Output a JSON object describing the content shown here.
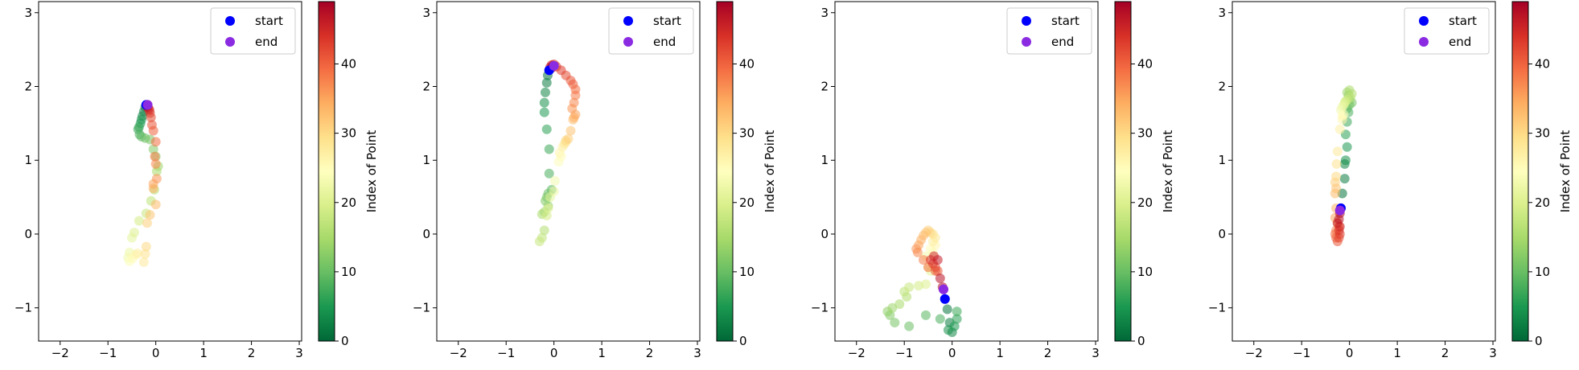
{
  "colorbar_label": "Index of Point",
  "legend": {
    "start_label": "start",
    "end_label": "end",
    "start_color": "#0000ff",
    "end_color": "#8a2be2"
  },
  "colormap": {
    "name": "RdYlGn_r",
    "stops": [
      "#006837",
      "#1a9850",
      "#66bd63",
      "#a6d96a",
      "#d9ef8b",
      "#ffffbf",
      "#fee08b",
      "#fdae61",
      "#f46d43",
      "#d73027",
      "#a50026"
    ],
    "range": [
      0,
      49
    ],
    "ticks": [
      0,
      10,
      20,
      30,
      40
    ]
  },
  "chart_data": [
    {
      "type": "scatter",
      "xlim": [
        -2.45,
        3.05
      ],
      "ylim": [
        -1.45,
        3.15
      ],
      "xticks": [
        -2,
        -1,
        0,
        1,
        2,
        3
      ],
      "yticks": [
        -1,
        0,
        1,
        2,
        3
      ],
      "legend_position": "upper right",
      "grid": false,
      "points": [
        [
          -0.2,
          1.75
        ],
        [
          -0.22,
          1.72
        ],
        [
          -0.25,
          1.66
        ],
        [
          -0.28,
          1.6
        ],
        [
          -0.3,
          1.55
        ],
        [
          -0.32,
          1.5
        ],
        [
          -0.35,
          1.45
        ],
        [
          -0.37,
          1.42
        ],
        [
          -0.34,
          1.35
        ],
        [
          -0.3,
          1.32
        ],
        [
          -0.22,
          1.3
        ],
        [
          -0.12,
          1.28
        ],
        [
          -0.05,
          1.15
        ],
        [
          0.0,
          1.05
        ],
        [
          0.05,
          0.92
        ],
        [
          0.02,
          0.85
        ],
        [
          -0.03,
          0.6
        ],
        [
          -0.1,
          0.45
        ],
        [
          -0.2,
          0.28
        ],
        [
          -0.35,
          0.18
        ],
        [
          -0.45,
          0.02
        ],
        [
          -0.5,
          -0.05
        ],
        [
          -0.55,
          -0.25
        ],
        [
          -0.58,
          -0.32
        ],
        [
          -0.55,
          -0.37
        ],
        [
          -0.48,
          -0.33
        ],
        [
          -0.42,
          -0.28
        ],
        [
          -0.38,
          -0.26
        ],
        [
          -0.25,
          -0.38
        ],
        [
          -0.22,
          -0.27
        ],
        [
          -0.2,
          -0.17
        ],
        [
          -0.18,
          0.15
        ],
        [
          -0.12,
          0.26
        ],
        [
          0.0,
          0.4
        ],
        [
          -0.05,
          0.62
        ],
        [
          -0.05,
          0.68
        ],
        [
          0.02,
          0.75
        ],
        [
          0.0,
          0.95
        ],
        [
          -0.02,
          1.05
        ],
        [
          0.0,
          1.25
        ],
        [
          -0.05,
          1.4
        ],
        [
          -0.08,
          1.48
        ],
        [
          -0.1,
          1.58
        ],
        [
          -0.12,
          1.64
        ],
        [
          -0.13,
          1.68
        ],
        [
          -0.15,
          1.7
        ],
        [
          -0.17,
          1.72
        ],
        [
          -0.18,
          1.74
        ],
        [
          -0.18,
          1.75
        ],
        [
          -0.17,
          1.75
        ]
      ],
      "start": [
        -0.2,
        1.75
      ],
      "end": [
        -0.17,
        1.75
      ]
    },
    {
      "type": "scatter",
      "xlim": [
        -2.45,
        3.05
      ],
      "ylim": [
        -1.45,
        3.15
      ],
      "xticks": [
        -2,
        -1,
        0,
        1,
        2,
        3
      ],
      "yticks": [
        -1,
        0,
        1,
        2,
        3
      ],
      "legend_position": "upper right",
      "grid": false,
      "points": [
        [
          -0.1,
          2.22
        ],
        [
          -0.13,
          2.15
        ],
        [
          -0.15,
          2.05
        ],
        [
          -0.18,
          1.92
        ],
        [
          -0.2,
          1.78
        ],
        [
          -0.2,
          1.65
        ],
        [
          -0.15,
          1.42
        ],
        [
          -0.1,
          1.15
        ],
        [
          -0.1,
          0.82
        ],
        [
          -0.05,
          0.6
        ],
        [
          -0.12,
          0.55
        ],
        [
          -0.15,
          0.5
        ],
        [
          -0.18,
          0.45
        ],
        [
          -0.12,
          0.38
        ],
        [
          -0.2,
          0.3
        ],
        [
          -0.25,
          0.27
        ],
        [
          -0.2,
          0.05
        ],
        [
          -0.25,
          -0.05
        ],
        [
          -0.3,
          -0.1
        ],
        [
          -0.15,
          0.25
        ],
        [
          -0.12,
          0.35
        ],
        [
          -0.08,
          0.5
        ],
        [
          0.0,
          0.58
        ],
        [
          0.02,
          0.72
        ],
        [
          0.1,
          0.98
        ],
        [
          0.15,
          1.05
        ],
        [
          0.12,
          1.1
        ],
        [
          0.18,
          1.18
        ],
        [
          0.22,
          1.22
        ],
        [
          0.25,
          1.25
        ],
        [
          0.25,
          1.27
        ],
        [
          0.3,
          1.29
        ],
        [
          0.35,
          1.4
        ],
        [
          0.4,
          1.55
        ],
        [
          0.42,
          1.58
        ],
        [
          0.45,
          1.62
        ],
        [
          0.38,
          1.7
        ],
        [
          0.42,
          1.78
        ],
        [
          0.45,
          1.88
        ],
        [
          0.45,
          1.96
        ],
        [
          0.4,
          2.03
        ],
        [
          0.35,
          2.08
        ],
        [
          0.25,
          2.15
        ],
        [
          0.15,
          2.22
        ],
        [
          0.05,
          2.27
        ],
        [
          0.0,
          2.3
        ],
        [
          -0.05,
          2.29
        ],
        [
          -0.08,
          2.26
        ],
        [
          -0.05,
          2.25
        ],
        [
          -0.02,
          2.28
        ]
      ],
      "start": [
        -0.1,
        2.22
      ],
      "end": [
        0.0,
        2.28
      ]
    },
    {
      "type": "scatter",
      "xlim": [
        -2.45,
        3.05
      ],
      "ylim": [
        -1.45,
        3.15
      ],
      "xticks": [
        -2,
        -1,
        0,
        1,
        2,
        3
      ],
      "yticks": [
        -1,
        0,
        1,
        2,
        3
      ],
      "legend_position": "upper right",
      "grid": false,
      "points": [
        [
          -0.15,
          -0.88
        ],
        [
          -0.1,
          -1.02
        ],
        [
          -0.05,
          -1.2
        ],
        [
          0.0,
          -1.33
        ],
        [
          -0.08,
          -1.3
        ],
        [
          0.05,
          -1.25
        ],
        [
          0.1,
          -1.15
        ],
        [
          0.1,
          -1.05
        ],
        [
          -0.25,
          -1.15
        ],
        [
          -0.55,
          -1.1
        ],
        [
          -0.9,
          -1.25
        ],
        [
          -1.2,
          -1.2
        ],
        [
          -1.3,
          -1.1
        ],
        [
          -1.35,
          -1.05
        ],
        [
          -1.25,
          -1.0
        ],
        [
          -1.1,
          -0.95
        ],
        [
          -0.95,
          -0.85
        ],
        [
          -1.0,
          -0.78
        ],
        [
          -0.9,
          -0.72
        ],
        [
          -0.7,
          -0.7
        ],
        [
          -0.55,
          -0.68
        ],
        [
          -0.45,
          -0.5
        ],
        [
          -0.5,
          -0.45
        ],
        [
          -0.55,
          -0.3
        ],
        [
          -0.4,
          -0.25
        ],
        [
          -0.45,
          -0.2
        ],
        [
          -0.35,
          -0.15
        ],
        [
          -0.4,
          -0.1
        ],
        [
          -0.35,
          -0.05
        ],
        [
          -0.4,
          0.0
        ],
        [
          -0.45,
          0.02
        ],
        [
          -0.5,
          0.05
        ],
        [
          -0.55,
          0.02
        ],
        [
          -0.6,
          -0.02
        ],
        [
          -0.65,
          -0.08
        ],
        [
          -0.7,
          -0.15
        ],
        [
          -0.75,
          -0.2
        ],
        [
          -0.72,
          -0.25
        ],
        [
          -0.6,
          -0.35
        ],
        [
          -0.5,
          -0.45
        ],
        [
          -0.35,
          -0.5
        ],
        [
          -0.3,
          -0.5
        ],
        [
          -0.35,
          -0.45
        ],
        [
          -0.4,
          -0.4
        ],
        [
          -0.45,
          -0.35
        ],
        [
          -0.38,
          -0.3
        ],
        [
          -0.3,
          -0.35
        ],
        [
          -0.25,
          -0.6
        ],
        [
          -0.2,
          -0.72
        ],
        [
          -0.18,
          -0.75
        ]
      ],
      "start": [
        -0.15,
        -0.88
      ],
      "end": [
        -0.18,
        -0.75
      ]
    },
    {
      "type": "scatter",
      "xlim": [
        -2.45,
        3.05
      ],
      "ylim": [
        -1.45,
        3.15
      ],
      "xticks": [
        -2,
        -1,
        0,
        1,
        2,
        3
      ],
      "yticks": [
        -1,
        0,
        1,
        2,
        3
      ],
      "legend_position": "upper right",
      "grid": false,
      "points": [
        [
          -0.18,
          0.35
        ],
        [
          -0.15,
          0.55
        ],
        [
          -0.1,
          0.75
        ],
        [
          -0.1,
          0.95
        ],
        [
          -0.08,
          1.0
        ],
        [
          -0.05,
          1.18
        ],
        [
          -0.08,
          1.35
        ],
        [
          -0.05,
          1.52
        ],
        [
          -0.02,
          1.65
        ],
        [
          -0.05,
          1.7
        ],
        [
          0.0,
          1.75
        ],
        [
          0.05,
          1.78
        ],
        [
          0.0,
          1.82
        ],
        [
          -0.02,
          1.88
        ],
        [
          -0.05,
          1.92
        ],
        [
          0.0,
          1.95
        ],
        [
          0.05,
          1.9
        ],
        [
          0.02,
          1.85
        ],
        [
          -0.05,
          1.82
        ],
        [
          -0.08,
          1.8
        ],
        [
          -0.1,
          1.78
        ],
        [
          -0.12,
          1.75
        ],
        [
          -0.15,
          1.72
        ],
        [
          -0.18,
          1.68
        ],
        [
          -0.12,
          1.62
        ],
        [
          -0.15,
          1.6
        ],
        [
          -0.15,
          1.55
        ],
        [
          -0.2,
          1.42
        ],
        [
          -0.25,
          1.12
        ],
        [
          -0.27,
          0.95
        ],
        [
          -0.28,
          0.78
        ],
        [
          -0.3,
          0.7
        ],
        [
          -0.28,
          0.62
        ],
        [
          -0.3,
          0.55
        ],
        [
          -0.28,
          0.35
        ],
        [
          -0.3,
          0.22
        ],
        [
          -0.25,
          0.15
        ],
        [
          -0.22,
          0.1
        ],
        [
          -0.28,
          0.05
        ],
        [
          -0.3,
          0.0
        ],
        [
          -0.28,
          -0.05
        ],
        [
          -0.25,
          -0.1
        ],
        [
          -0.22,
          -0.05
        ],
        [
          -0.2,
          0.0
        ],
        [
          -0.22,
          0.05
        ],
        [
          -0.2,
          0.1
        ],
        [
          -0.25,
          0.15
        ],
        [
          -0.22,
          0.2
        ],
        [
          -0.2,
          0.28
        ],
        [
          -0.2,
          0.32
        ]
      ],
      "start": [
        -0.18,
        0.35
      ],
      "end": [
        -0.2,
        0.32
      ]
    }
  ]
}
